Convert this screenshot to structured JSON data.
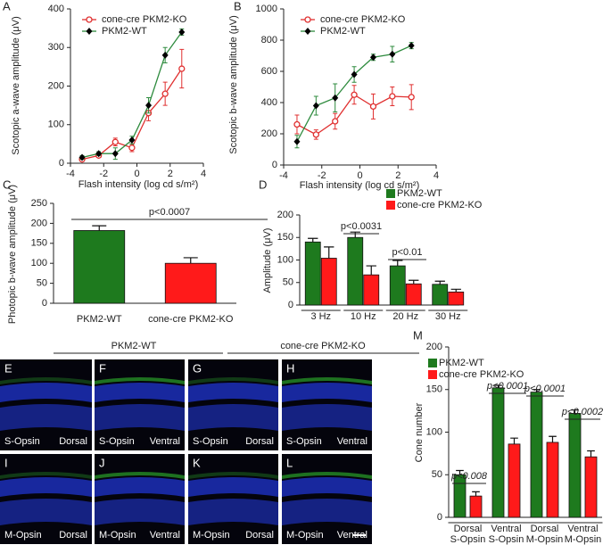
{
  "chart_data": [
    {
      "panel": "A",
      "type": "line",
      "x": [
        -3.3,
        -2.3,
        -1.3,
        -0.3,
        0.7,
        1.7,
        2.7
      ],
      "xlim": [
        -4,
        4
      ],
      "xticks": [
        -4,
        -2,
        0,
        2,
        4
      ],
      "ylim": [
        0,
        400
      ],
      "yticks": [
        0,
        100,
        200,
        300,
        400
      ],
      "x_label": "Flash intensity (log cd s/m²)",
      "y_label": "Scotopic a-wave amplitude (μV)",
      "series": [
        {
          "name": "cone-cre PKM2-KO",
          "color": "#e03030",
          "marker": "circle",
          "marker_color": "#e03030",
          "values": [
            10,
            20,
            55,
            40,
            130,
            180,
            245
          ],
          "errors": [
            5,
            5,
            10,
            10,
            20,
            30,
            50
          ]
        },
        {
          "name": "PKM2-WT",
          "color": "#2e8b3e",
          "marker": "diamond",
          "marker_color": "#000000",
          "values": [
            15,
            25,
            25,
            60,
            150,
            280,
            340
          ],
          "errors": [
            5,
            5,
            15,
            10,
            20,
            20,
            8
          ]
        }
      ]
    },
    {
      "panel": "B",
      "type": "line",
      "x": [
        -3.3,
        -2.3,
        -1.3,
        -0.3,
        0.7,
        1.7,
        2.7
      ],
      "xlim": [
        -4,
        4
      ],
      "xticks": [
        -4,
        -2,
        0,
        2,
        4
      ],
      "ylim": [
        0,
        1000
      ],
      "yticks": [
        0,
        200,
        400,
        600,
        800,
        1000
      ],
      "x_label": "Flash intensity (log cd s/m²)",
      "y_label": "Scotopic b-wave amplitude (μV)",
      "series": [
        {
          "name": "cone-cre PKM2-KO",
          "color": "#e03030",
          "marker": "circle",
          "marker_color": "#e03030",
          "values": [
            260,
            195,
            280,
            450,
            375,
            440,
            435
          ],
          "errors": [
            60,
            30,
            50,
            60,
            80,
            60,
            80
          ]
        },
        {
          "name": "PKM2-WT",
          "color": "#2e8b3e",
          "marker": "diamond",
          "marker_color": "#000000",
          "values": [
            150,
            380,
            430,
            580,
            690,
            710,
            765
          ],
          "errors": [
            40,
            60,
            90,
            50,
            20,
            50,
            20
          ]
        }
      ]
    },
    {
      "panel": "C",
      "type": "bar",
      "categories": [
        "PKM2-WT",
        "cone-cre PKM2-KO"
      ],
      "values": [
        182,
        100
      ],
      "errors": [
        12,
        14
      ],
      "colors": [
        "#1e7a1e",
        "#ff1a1a"
      ],
      "ylim": [
        0,
        250
      ],
      "yticks": [
        0,
        50,
        100,
        150,
        200,
        250
      ],
      "y_label": "Photopic b-wave amplitude (μV)",
      "annotations": [
        "p<0.0007"
      ]
    },
    {
      "panel": "D",
      "type": "bar",
      "categories": [
        "3 Hz",
        "10 Hz",
        "20 Hz",
        "30 Hz"
      ],
      "ylim": [
        0,
        200
      ],
      "yticks": [
        0,
        50,
        100,
        150,
        200
      ],
      "y_label": "Amplitude (μV)",
      "series": [
        {
          "name": "PKM2-WT",
          "color": "#1e7a1e",
          "values": [
            140,
            150,
            87,
            46
          ],
          "errors": [
            8,
            12,
            12,
            7
          ]
        },
        {
          "name": "cone-cre PKM2-KO",
          "color": "#ff1a1a",
          "values": [
            104,
            67,
            47,
            29
          ],
          "errors": [
            25,
            20,
            8,
            6
          ]
        }
      ],
      "annotations": [
        "p<0.0031",
        "p<0.01"
      ]
    },
    {
      "panel": "M",
      "type": "bar",
      "categories": [
        "Dorsal S-Opsin",
        "Ventral S-Opsin",
        "Dorsal M-Opsin",
        "Ventral M-Opsin"
      ],
      "ylim": [
        0,
        200
      ],
      "yticks": [
        0,
        50,
        100,
        150,
        200
      ],
      "y_label": "Cone number",
      "series": [
        {
          "name": "PKM2-WT",
          "color": "#1e7a1e",
          "values": [
            50,
            152,
            147,
            122
          ],
          "errors": [
            5,
            3,
            3,
            4
          ]
        },
        {
          "name": "cone-cre PKM2-KO",
          "color": "#ff1a1a",
          "values": [
            25,
            86,
            88,
            71
          ],
          "errors": [
            5,
            7,
            7,
            7
          ]
        }
      ],
      "annotations": [
        "p<0.008",
        "p<0.0001",
        "p<0.0001",
        "p<0.0002"
      ]
    }
  ],
  "micrographs": {
    "groups": [
      "PKM2-WT",
      "cone-cre PKM2-KO"
    ],
    "panels": [
      {
        "letter": "E",
        "stain": "S-Opsin",
        "region": "Dorsal"
      },
      {
        "letter": "F",
        "stain": "S-Opsin",
        "region": "Ventral"
      },
      {
        "letter": "G",
        "stain": "S-Opsin",
        "region": "Dorsal"
      },
      {
        "letter": "H",
        "stain": "S-Opsin",
        "region": "Ventral"
      },
      {
        "letter": "I",
        "stain": "M-Opsin",
        "region": "Dorsal"
      },
      {
        "letter": "J",
        "stain": "M-Opsin",
        "region": "Ventral"
      },
      {
        "letter": "K",
        "stain": "M-Opsin",
        "region": "Dorsal"
      },
      {
        "letter": "L",
        "stain": "M-Opsin",
        "region": "Ventral"
      }
    ]
  }
}
